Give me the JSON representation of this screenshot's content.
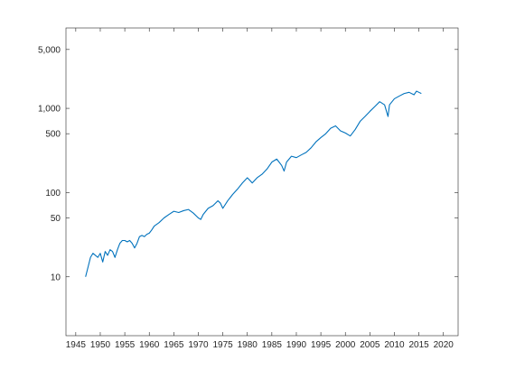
{
  "chart_data": {
    "type": "line",
    "title": "",
    "xlabel": "",
    "ylabel": "",
    "y_scale": "log",
    "xlim": [
      1943,
      2023
    ],
    "ylim": [
      2,
      9000
    ],
    "grid": false,
    "box": true,
    "x_ticks": [
      1945,
      1950,
      1955,
      1960,
      1965,
      1970,
      1975,
      1980,
      1985,
      1990,
      1995,
      2000,
      2005,
      2010,
      2015,
      2020
    ],
    "x_tick_labels": [
      "1945",
      "1950",
      "1955",
      "1960",
      "1965",
      "1970",
      "1975",
      "1980",
      "1985",
      "1990",
      "1995",
      "2000",
      "2005",
      "2010",
      "2015",
      "2020"
    ],
    "y_ticks": [
      10,
      50,
      100,
      500,
      1000,
      5000
    ],
    "y_tick_labels": [
      "10",
      "50",
      "100",
      "500",
      "1,000",
      "5,000"
    ],
    "series": [
      {
        "color": "#0072bd",
        "x": [
          1947.0,
          1947.5,
          1948.0,
          1948.5,
          1949.0,
          1949.5,
          1950.0,
          1950.5,
          1951.0,
          1951.5,
          1952.0,
          1952.5,
          1953.0,
          1953.5,
          1954.0,
          1954.5,
          1955.0,
          1955.5,
          1956.0,
          1956.5,
          1957.0,
          1957.5,
          1958.0,
          1958.5,
          1959.0,
          1959.5,
          1960.0,
          1960.5,
          1961.0,
          1962.0,
          1963.0,
          1964.0,
          1965.0,
          1966.0,
          1967.0,
          1968.0,
          1969.0,
          1970.0,
          1970.5,
          1971.0,
          1972.0,
          1973.0,
          1974.0,
          1974.5,
          1975.0,
          1976.0,
          1977.0,
          1978.0,
          1979.0,
          1980.0,
          1980.5,
          1981.0,
          1982.0,
          1983.0,
          1984.0,
          1985.0,
          1986.0,
          1987.0,
          1987.5,
          1988.0,
          1989.0,
          1990.0,
          1991.0,
          1992.0,
          1993.0,
          1994.0,
          1995.0,
          1996.0,
          1997.0,
          1998.0,
          1999.0,
          2000.0,
          2001.0,
          2002.0,
          2003.0,
          2004.0,
          2005.0,
          2006.0,
          2007.0,
          2008.0,
          2008.7,
          2009.0,
          2010.0,
          2011.0,
          2012.0,
          2013.0,
          2014.0,
          2014.5,
          2015.0,
          2015.5
        ],
        "y": [
          10,
          13,
          17,
          19,
          18,
          17,
          19,
          15,
          20,
          18,
          21,
          20,
          17,
          21,
          25,
          27,
          27,
          26,
          27,
          25,
          22,
          25,
          30,
          31,
          30,
          32,
          33,
          36,
          40,
          44,
          50,
          55,
          60,
          58,
          61,
          63,
          57,
          50,
          48,
          55,
          65,
          70,
          80,
          75,
          65,
          80,
          95,
          110,
          130,
          150,
          140,
          130,
          150,
          165,
          190,
          230,
          250,
          210,
          180,
          230,
          270,
          260,
          280,
          300,
          340,
          400,
          450,
          500,
          580,
          620,
          540,
          510,
          470,
          560,
          700,
          800,
          920,
          1050,
          1200,
          1100,
          800,
          1100,
          1300,
          1400,
          1500,
          1550,
          1450,
          1600,
          1550,
          1500
        ]
      }
    ]
  }
}
